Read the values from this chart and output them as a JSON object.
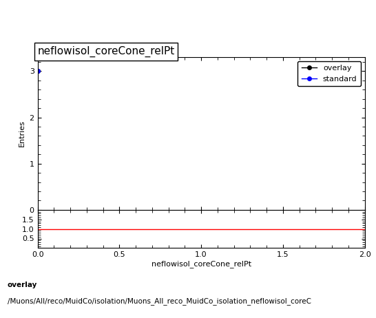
{
  "title": "neflowisol_coreCone_relPt",
  "ylabel_main": "Entries",
  "xlabel": "neflowisol_coreCone_relPt",
  "xlim": [
    0,
    2
  ],
  "ylim_main": [
    0,
    3.3
  ],
  "ylim_ratio": [
    0,
    2
  ],
  "yticks_main": [
    0,
    1,
    2,
    3
  ],
  "yticks_ratio": [
    0.5,
    1,
    1.5
  ],
  "xticks": [
    0,
    0.5,
    1,
    1.5,
    2
  ],
  "overlay_x": [
    0.0
  ],
  "overlay_y": [
    3.0
  ],
  "standard_x": [
    0.0
  ],
  "standard_y": [
    3.0
  ],
  "ratio_y": 1.0,
  "overlay_color": "#000000",
  "standard_color": "#0000ff",
  "ratio_color": "#ff0000",
  "footer_line1": "overlay",
  "footer_line2": "/Muons/All/reco/MuidCo/isolation/Muons_All_reco_MuidCo_isolation_neflowisol_coreC",
  "title_fontsize": 11,
  "label_fontsize": 8,
  "tick_fontsize": 8,
  "footer_fontsize": 7.5,
  "legend_fontsize": 8,
  "background_color": "#ffffff"
}
